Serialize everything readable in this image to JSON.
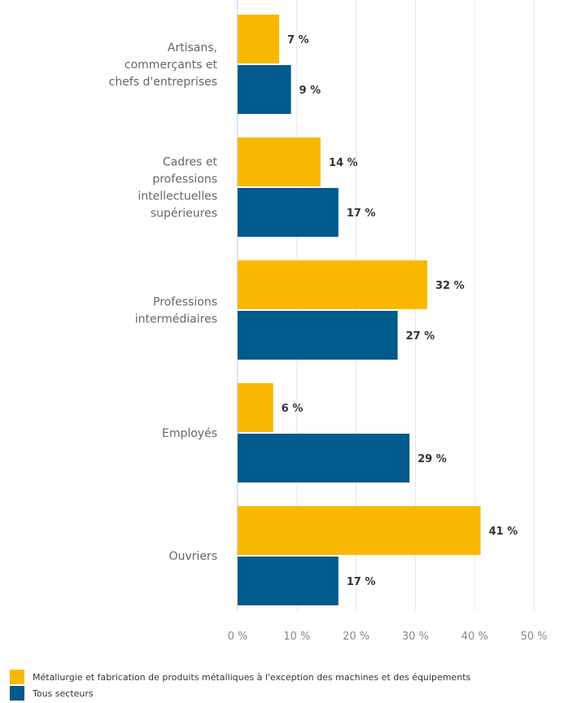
{
  "chart_data": {
    "type": "bar",
    "orientation": "horizontal",
    "categories": [
      [
        "Artisans,",
        "commerçants et",
        "chefs d'entreprises"
      ],
      [
        "Cadres et",
        "professions",
        "intellectuelles",
        "supérieures"
      ],
      [
        "Professions",
        "intermédiaires"
      ],
      [
        "Employés"
      ],
      [
        "Ouvriers"
      ]
    ],
    "series": [
      {
        "name": "Métallurgie et fabrication de produits métalliques à l'exception des machines et des équipements",
        "color": "#f9b800",
        "values": [
          7,
          14,
          32,
          6,
          41
        ],
        "labels": [
          "7 %",
          "14 %",
          "32 %",
          "6 %",
          "41 %"
        ]
      },
      {
        "name": "Tous secteurs",
        "color": "#005a8c",
        "values": [
          9,
          17,
          27,
          29,
          17
        ],
        "labels": [
          "9 %",
          "17 %",
          "27 %",
          "29 %",
          "17 %"
        ]
      }
    ],
    "xlim": [
      0,
      50
    ],
    "ticks": [
      0,
      10,
      20,
      30,
      40,
      50
    ],
    "tick_labels": [
      "0 %",
      "10 %",
      "20 %",
      "30 %",
      "40 %",
      "50 %"
    ],
    "grid": true,
    "legend_position": "bottom-left"
  }
}
